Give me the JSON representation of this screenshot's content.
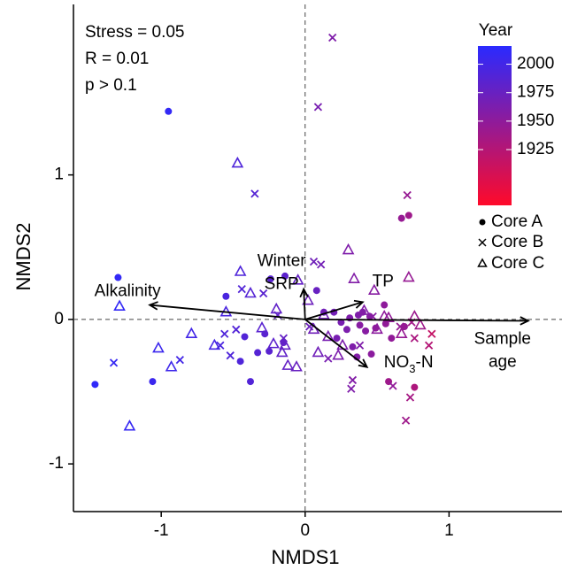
{
  "chart_data": {
    "type": "scatter",
    "xlabel": "NMDS1",
    "ylabel": "NMDS2",
    "xlim": [
      -1.61,
      1.785
    ],
    "ylim": [
      -1.33,
      2.18
    ],
    "xticks": [
      -1,
      0,
      1
    ],
    "yticks": [
      -1,
      0,
      1
    ],
    "annotations": [
      "Stress = 0.05",
      "R = 0.01",
      "p > 0.1"
    ],
    "colorbar": {
      "title": "Year",
      "lim": [
        1876,
        2016
      ],
      "ticks": [
        1925,
        1950,
        1975,
        2000
      ],
      "colors": [
        "#ff0a2a",
        "#2a2aff"
      ]
    },
    "series": [
      {
        "name": "Core A",
        "marker": "dot",
        "x": [
          -0.95,
          -1.3,
          -1.46,
          -1.06,
          -0.55,
          -0.42,
          -0.45,
          -0.38,
          -0.33,
          -0.28,
          -0.25,
          -0.24,
          -0.14,
          -0.15,
          0.08,
          0.13,
          0.22,
          0.25,
          0.29,
          0.31,
          0.33,
          0.36,
          0.37,
          0.38,
          0.42,
          0.46,
          0.49,
          0.55,
          0.56,
          0.6,
          0.69,
          0.58,
          0.76,
          0.67,
          0.72,
          0.4,
          0.2,
          0.45
        ],
        "y": [
          1.44,
          0.29,
          -0.45,
          -0.43,
          0.16,
          -0.12,
          -0.29,
          -0.43,
          -0.23,
          -0.1,
          -0.22,
          0.28,
          0.3,
          -0.16,
          0.2,
          0.05,
          -0.13,
          -0.02,
          -0.07,
          0.01,
          -0.19,
          -0.26,
          0.03,
          -0.04,
          -0.08,
          -0.24,
          -0.06,
          0.1,
          -0.03,
          -0.13,
          -0.05,
          -0.43,
          -0.47,
          0.7,
          0.72,
          0.05,
          0.05,
          0.02
        ],
        "year": [
          2010,
          2010,
          2012,
          2005,
          1995,
          1990,
          1992,
          1990,
          1988,
          1985,
          1985,
          1985,
          1983,
          1980,
          1975,
          1970,
          1965,
          1965,
          1962,
          1960,
          1960,
          1958,
          1960,
          1955,
          1955,
          1952,
          1950,
          1950,
          1948,
          1948,
          1945,
          1940,
          1930,
          1945,
          1940,
          1958,
          1968,
          1955
        ]
      },
      {
        "name": "Core B",
        "marker": "cross",
        "x": [
          -1.33,
          -0.87,
          -0.59,
          -0.56,
          -0.48,
          -0.52,
          -0.44,
          -0.35,
          -0.29,
          -0.19,
          -0.15,
          0.03,
          0.09,
          0.19,
          0.06,
          0.11,
          0.32,
          0.33,
          0.47,
          0.61,
          0.66,
          0.7,
          0.71,
          0.73,
          0.74,
          0.76,
          0.86,
          0.88,
          0.16,
          0.38
        ],
        "y": [
          -0.3,
          -0.28,
          -0.18,
          -0.1,
          -0.07,
          -0.25,
          0.21,
          0.87,
          0.18,
          0.03,
          -0.13,
          -0.05,
          1.47,
          1.95,
          0.4,
          0.38,
          -0.48,
          -0.42,
          0.02,
          -0.46,
          -0.05,
          -0.7,
          0.86,
          -0.54,
          -0.02,
          -0.13,
          -0.18,
          -0.1,
          -0.27,
          -0.18
        ],
        "year": [
          2008,
          2000,
          1995,
          1992,
          1990,
          1992,
          1990,
          1988,
          1985,
          1980,
          1978,
          1972,
          1965,
          1960,
          1970,
          1968,
          1960,
          1958,
          1955,
          1948,
          1945,
          1940,
          1945,
          1935,
          1938,
          1932,
          1925,
          1915,
          1965,
          1960
        ]
      },
      {
        "name": "Core C",
        "marker": "triangle",
        "x": [
          -1.29,
          -1.22,
          -1.02,
          -0.93,
          -0.79,
          -0.63,
          -0.55,
          -0.47,
          -0.45,
          -0.38,
          -0.3,
          -0.22,
          -0.2,
          -0.16,
          -0.14,
          -0.12,
          -0.06,
          -0.05,
          0.02,
          0.06,
          0.09,
          0.13,
          0.16,
          0.23,
          0.26,
          0.3,
          0.34,
          0.41,
          0.48,
          0.5,
          0.55,
          0.67,
          0.72,
          0.76,
          0.8,
          0.58
        ],
        "y": [
          0.09,
          -0.74,
          -0.2,
          -0.33,
          -0.1,
          -0.18,
          0.05,
          1.08,
          0.33,
          0.18,
          -0.06,
          -0.17,
          0.07,
          -0.23,
          -0.18,
          -0.32,
          -0.33,
          0.27,
          0.13,
          -0.07,
          -0.23,
          0.03,
          -0.12,
          -0.25,
          -0.18,
          0.48,
          0.28,
          0.06,
          0.2,
          -0.07,
          0.02,
          -0.1,
          0.29,
          0.02,
          -0.04,
          0.01
        ],
        "year": [
          2010,
          2008,
          2005,
          2003,
          2000,
          1998,
          1995,
          1992,
          1992,
          1988,
          1985,
          1983,
          1980,
          1980,
          1978,
          1978,
          1975,
          1978,
          1972,
          1970,
          1970,
          1968,
          1965,
          1962,
          1962,
          1960,
          1958,
          1958,
          1955,
          1952,
          1950,
          1945,
          1945,
          1942,
          1940,
          1948
        ]
      }
    ],
    "arrows": [
      {
        "lines": [
          "Alkalinity"
        ],
        "x": -1.08,
        "y": 0.1
      },
      {
        "lines": [
          "Winter",
          "SRP"
        ],
        "x": -0.01,
        "y": 0.21
      },
      {
        "lines": [
          "TP"
        ],
        "x": 0.4,
        "y": 0.12
      },
      {
        "label_parts": [
          "NO",
          "3",
          "-N"
        ],
        "x": 0.43,
        "y": -0.33
      },
      {
        "lines": [
          "Sample",
          "age"
        ],
        "x": 1.55,
        "y": -0.01
      }
    ]
  }
}
